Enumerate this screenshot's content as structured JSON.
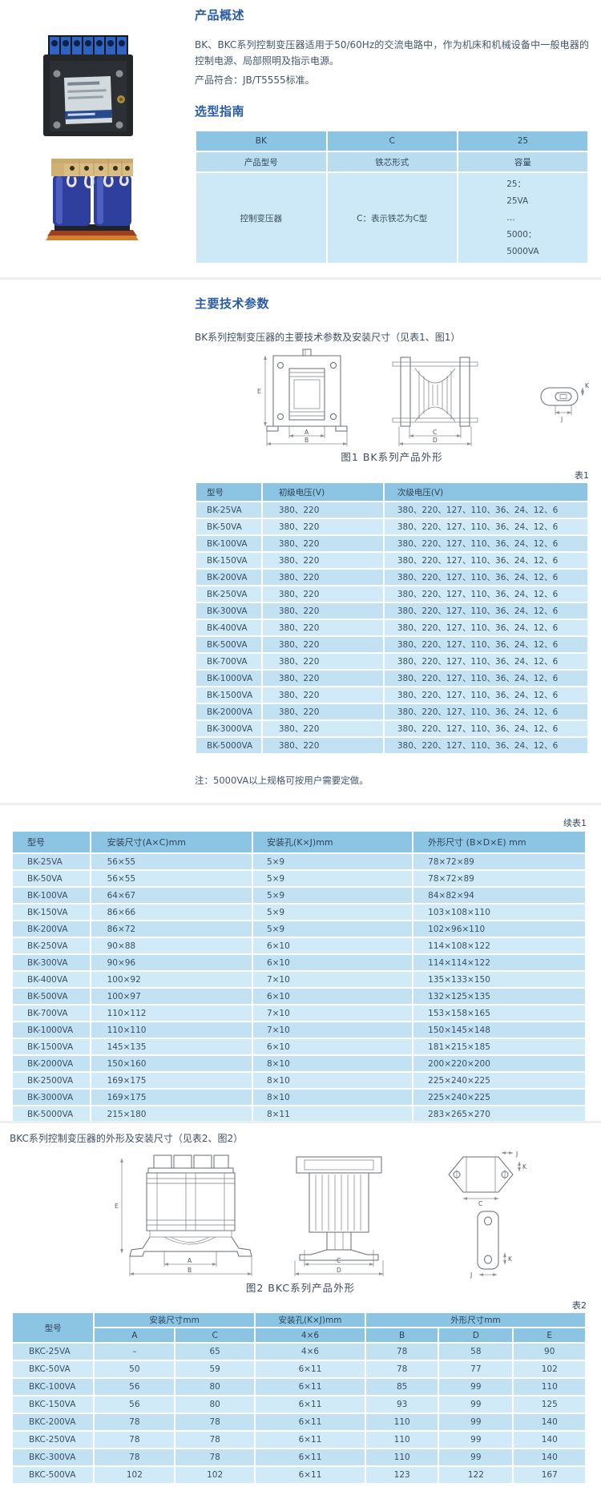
{
  "colors": {
    "heading_blue": "#2a5ba6",
    "table_header_bg": "#8cc4e4",
    "table_subheader_bg": "#b9dcee",
    "row_light": "#d0eaf8",
    "row_dark": "#c2e2f4",
    "body_text": "#44566a"
  },
  "overview": {
    "title": "产品概述",
    "body": "BK、BKC系列控制变压器适用于50/60Hz的交流电路中，作为机床和机械设备中一般电器的控制电源、局部照明及指示电源。",
    "standard": "产品符合：JB/T5555标准。"
  },
  "selection": {
    "title": "选型指南",
    "codes": [
      "BK",
      "C",
      "25"
    ],
    "meanings": [
      "产品型号",
      "铁芯形式",
      "容量"
    ],
    "product_name": "控制变压器",
    "core_desc": "C：表示铁芯为C型",
    "capacity_lines": [
      "25：",
      "25VA",
      "…",
      "5000：",
      "5000VA"
    ]
  },
  "tech": {
    "title": "主要技术参数",
    "bk_intro": "BK系列控制变压器的主要技术参数及安装尺寸（见表1、图1）",
    "bkc_intro": "BKC系列控制变压器的外形及安装尺寸（见表2、图2）",
    "note": "注：5000VA以上规格可按用户需要定做。"
  },
  "fig1": {
    "caption": "图1 BK系列产品外形"
  },
  "fig2": {
    "caption": "图2 BKC系列产品外形"
  },
  "dims": {
    "a": "A",
    "b": "B",
    "c": "C",
    "d": "D",
    "e": "E",
    "j": "J",
    "k": "K"
  },
  "table1": {
    "label": "表1",
    "headers": [
      "型号",
      "初级电压(V)",
      "次级电压(V)"
    ],
    "rows": [
      [
        "BK-25VA",
        "380、220",
        "380、220、127、110、36、24、12、6"
      ],
      [
        "BK-50VA",
        "380、220",
        "380、220、127、110、36、24、12、6"
      ],
      [
        "BK-100VA",
        "380、220",
        "380、220、127、110、36、24、12、6"
      ],
      [
        "BK-150VA",
        "380、220",
        "380、220、127、110、36、24、12、6"
      ],
      [
        "BK-200VA",
        "380、220",
        "380、220、127、110、36、24、12、6"
      ],
      [
        "BK-250VA",
        "380、220",
        "380、220、127、110、36、24、12、6"
      ],
      [
        "BK-300VA",
        "380、220",
        "380、220、127、110、36、24、12、6"
      ],
      [
        "BK-400VA",
        "380、220",
        "380、220、127、110、36、24、12、6"
      ],
      [
        "BK-500VA",
        "380、220",
        "380、220、127、110、36、24、12、6"
      ],
      [
        "BK-700VA",
        "380、220",
        "380、220、127、110、36、24、12、6"
      ],
      [
        "BK-1000VA",
        "380、220",
        "380、220、127、110、36、24、12、6"
      ],
      [
        "BK-1500VA",
        "380、220",
        "380、220、127、110、36、24、12、6"
      ],
      [
        "BK-2000VA",
        "380、220",
        "380、220、127、110、36、24、12、6"
      ],
      [
        "BK-3000VA",
        "380、220",
        "380、220、127、110、36、24、12、6"
      ],
      [
        "BK-5000VA",
        "380、220",
        "380、220、127、110、36、24、12、6"
      ]
    ]
  },
  "table1b": {
    "label": "续表1",
    "headers": [
      "型号",
      "安装尺寸(A×C)mm",
      "安装孔(K×J)mm",
      "外形尺寸 (B×D×E) mm"
    ],
    "rows": [
      [
        "BK-25VA",
        "56×55",
        "5×9",
        "78×72×89"
      ],
      [
        "BK-50VA",
        "56×55",
        "5×9",
        "78×72×89"
      ],
      [
        "BK-100VA",
        "64×67",
        "5×9",
        "84×82×94"
      ],
      [
        "BK-150VA",
        "86×66",
        "5×9",
        "103×108×110"
      ],
      [
        "BK-200VA",
        "86×72",
        "5×9",
        "102×96×110"
      ],
      [
        "BK-250VA",
        "90×88",
        "6×10",
        "114×108×122"
      ],
      [
        "BK-300VA",
        "90×96",
        "6×10",
        "114×114×122"
      ],
      [
        "BK-400VA",
        "100×92",
        "7×10",
        "135×133×150"
      ],
      [
        "BK-500VA",
        "100×97",
        "6×10",
        "132×125×135"
      ],
      [
        "BK-700VA",
        "110×112",
        "7×10",
        "153×158×165"
      ],
      [
        "BK-1000VA",
        "110×110",
        "7×10",
        "150×145×148"
      ],
      [
        "BK-1500VA",
        "145×135",
        "6×10",
        "181×215×185"
      ],
      [
        "BK-2000VA",
        "150×160",
        "8×10",
        "200×220×200"
      ],
      [
        "BK-2500VA",
        "169×175",
        "8×10",
        "225×240×225"
      ],
      [
        "BK-3000VA",
        "169×175",
        "8×10",
        "225×240×225"
      ],
      [
        "BK-5000VA",
        "215×180",
        "8×11",
        "283×265×270"
      ]
    ]
  },
  "table2": {
    "label": "表2",
    "col_model": "型号",
    "group_mount": "安装尺寸mm",
    "group_hole": "安装孔(K×J)mm",
    "group_outline": "外形尺寸mm",
    "subheaders": [
      "A",
      "C",
      "4×6",
      "B",
      "D",
      "E"
    ],
    "rows": [
      [
        "BKC-25VA",
        "–",
        "65",
        "4×6",
        "78",
        "58",
        "90"
      ],
      [
        "BKC-50VA",
        "50",
        "59",
        "6×11",
        "78",
        "77",
        "102"
      ],
      [
        "BKC-100VA",
        "56",
        "80",
        "6×11",
        "85",
        "99",
        "110"
      ],
      [
        "BKC-150VA",
        "56",
        "80",
        "6×11",
        "93",
        "99",
        "125"
      ],
      [
        "BKC-200VA",
        "78",
        "78",
        "6×11",
        "110",
        "99",
        "140"
      ],
      [
        "BKC-250VA",
        "78",
        "78",
        "6×11",
        "110",
        "99",
        "140"
      ],
      [
        "BKC-300VA",
        "78",
        "78",
        "6×11",
        "110",
        "99",
        "140"
      ],
      [
        "BKC-500VA",
        "102",
        "102",
        "6×11",
        "123",
        "122",
        "167"
      ]
    ]
  }
}
